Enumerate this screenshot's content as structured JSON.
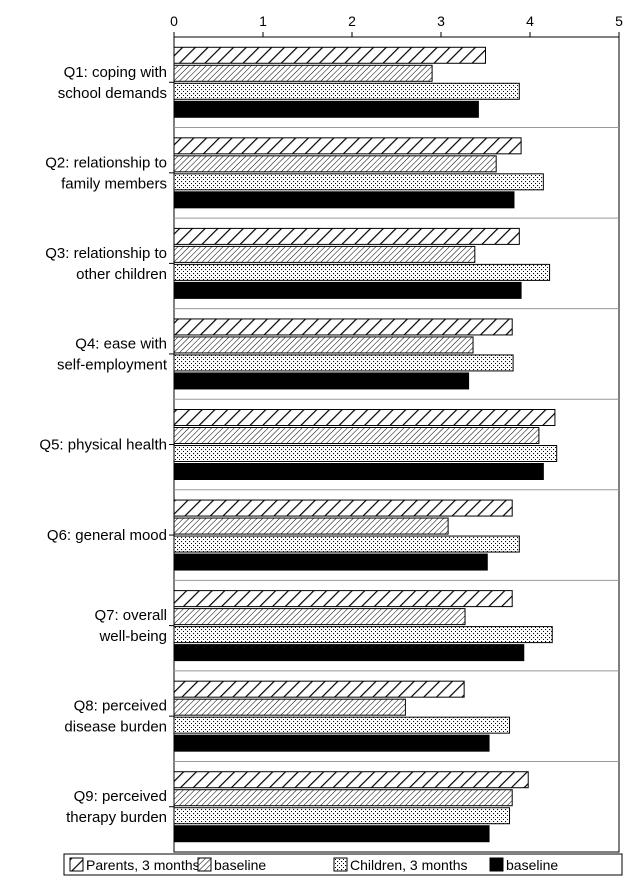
{
  "chart_data": {
    "type": "bar",
    "orientation": "horizontal",
    "title": "",
    "xlabel": "",
    "ylabel": "",
    "xlim": [
      0,
      5
    ],
    "x_ticks": [
      "0",
      "1",
      "2",
      "3",
      "4",
      "5"
    ],
    "x_axis_position": "top",
    "grid": false,
    "legend_position": "bottom",
    "categories": [
      [
        "Q1: coping with",
        "school demands"
      ],
      [
        "Q2: relationship to",
        "family members"
      ],
      [
        "Q3: relationship to",
        "other children"
      ],
      [
        "Q4: ease with",
        "self-employment"
      ],
      [
        "Q5: physical health"
      ],
      [
        "Q6: general mood"
      ],
      [
        "Q7: overall",
        "well-being"
      ],
      [
        "Q8: perceived",
        "disease burden"
      ],
      [
        "Q9: perceived",
        "therapy burden"
      ]
    ],
    "series": [
      {
        "name": "Parents, 3 months",
        "pattern": "wide-diagonal-hatch",
        "values": [
          3.5,
          3.9,
          3.88,
          3.8,
          4.28,
          3.8,
          3.8,
          3.26,
          3.98
        ]
      },
      {
        "name": "baseline",
        "pattern": "fine-diagonal-hatch",
        "values": [
          2.9,
          3.62,
          3.38,
          3.36,
          4.1,
          3.08,
          3.27,
          2.6,
          3.8
        ]
      },
      {
        "name": "Children, 3 months",
        "pattern": "dots",
        "values": [
          3.88,
          4.15,
          4.22,
          3.81,
          4.3,
          3.88,
          4.25,
          3.77,
          3.77
        ]
      },
      {
        "name": "baseline",
        "pattern": "solid-black",
        "values": [
          3.42,
          3.82,
          3.9,
          3.31,
          4.15,
          3.52,
          3.93,
          3.54,
          3.54
        ]
      }
    ],
    "colors": {
      "bar_outline": "#000000",
      "solid_fill": "#000000",
      "background": "#ffffff",
      "separator": "#999999"
    }
  }
}
